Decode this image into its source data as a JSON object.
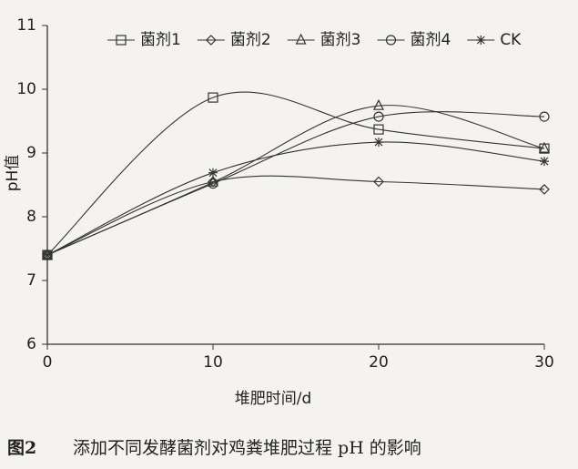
{
  "chart_data": {
    "type": "line",
    "x": [
      0,
      10,
      20,
      30
    ],
    "series": [
      {
        "name": "菌剂1",
        "marker": "square",
        "color": "#333333",
        "values": [
          7.4,
          9.87,
          9.37,
          9.07
        ]
      },
      {
        "name": "菌剂2",
        "marker": "diamond",
        "color": "#333333",
        "values": [
          7.4,
          8.55,
          8.55,
          8.43
        ]
      },
      {
        "name": "菌剂3",
        "marker": "triangle",
        "color": "#333333",
        "values": [
          7.4,
          8.54,
          9.74,
          9.07
        ]
      },
      {
        "name": "菌剂4",
        "marker": "circle",
        "color": "#333333",
        "values": [
          7.4,
          8.52,
          9.57,
          9.57
        ]
      },
      {
        "name": "CK",
        "marker": "star",
        "color": "#333333",
        "values": [
          7.4,
          8.69,
          9.17,
          8.87
        ]
      }
    ],
    "xlim": [
      0,
      30
    ],
    "xticks": [
      0,
      10,
      20,
      30
    ],
    "ylim": [
      6,
      11
    ],
    "yticks": [
      6,
      7,
      8,
      9,
      10,
      11
    ],
    "xlabel": "堆肥时间/d",
    "ylabel": "pH值",
    "legend": "top",
    "smooth": true,
    "figure_label": "图2",
    "caption": "添加不同发酵菌剂对鸡粪堆肥过程 pH 的影响"
  }
}
